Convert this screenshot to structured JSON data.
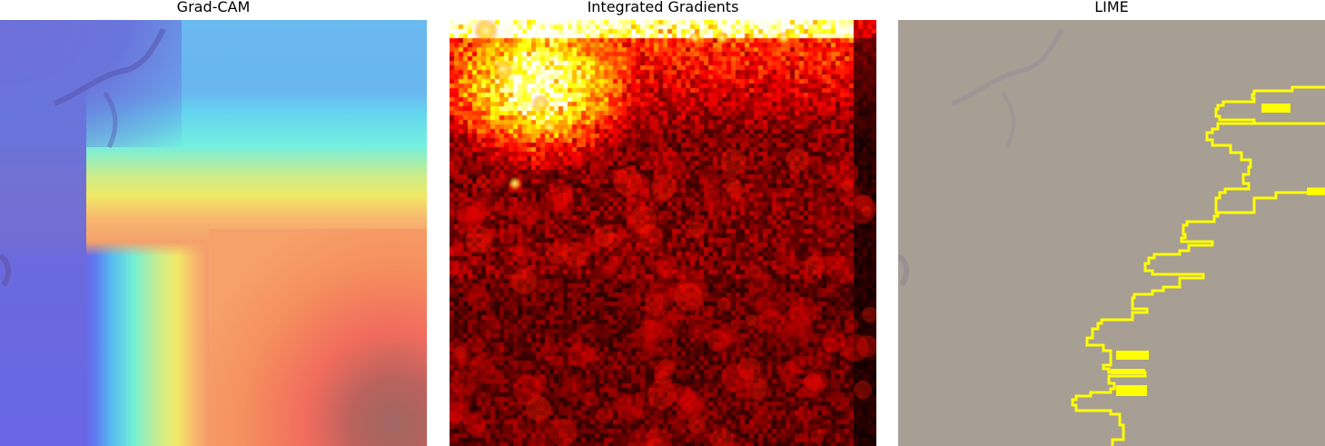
{
  "panels": [
    {
      "title": "Grad-CAM",
      "icon": "heatmap-image"
    },
    {
      "title": "Integrated Gradients",
      "icon": "attribution-heatmap-image"
    },
    {
      "title": "LIME",
      "icon": "segmentation-image"
    }
  ],
  "colors": {
    "gradcam_low": "#6a66e6",
    "gradcam_mid": "#f2e867",
    "gradcam_high": "#f26c5d",
    "ig_background": "#000000",
    "ig_hot": "#ffe04a",
    "lime_background": "#a79e94",
    "lime_boundary": "#ffff00"
  }
}
